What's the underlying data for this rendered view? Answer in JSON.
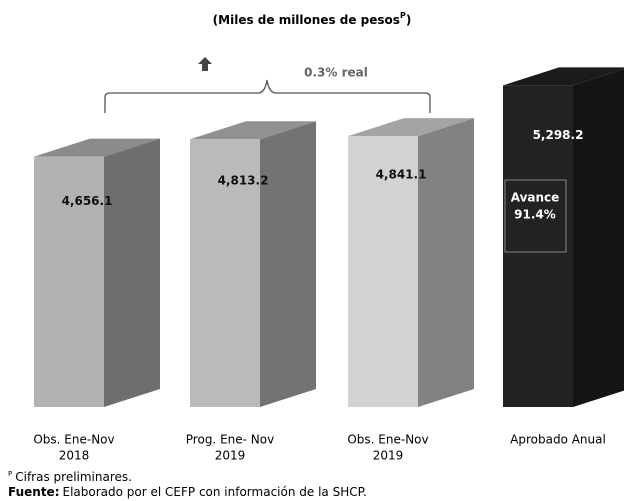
{
  "chart_data": {
    "type": "bar3d",
    "title": [
      "(Miles de millones de pesos",
      "P",
      ")"
    ],
    "categories": [
      [
        "Obs. Ene-Nov",
        "2018"
      ],
      [
        "Prog. Ene- Nov",
        "2019"
      ],
      [
        "Obs. Ene-Nov",
        "2019"
      ],
      [
        "Aprobado Anual"
      ]
    ],
    "values": [
      4656.1,
      4813.2,
      4841.1,
      5298.2
    ],
    "value_labels": [
      "4,656.1",
      "4,813.2",
      "4,841.1",
      "5,298.2"
    ],
    "colors": [
      "#b2b2b2",
      "#bababa",
      "#d2d2d2",
      "#222222"
    ],
    "ylim": [
      2400,
      5500
    ],
    "annotations": {
      "growth": "0.3% real",
      "avance": [
        "Avance",
        "91.4%"
      ]
    },
    "footnotes": {
      "note_mark": "P",
      "note": "Cifras preliminares.",
      "source_label": "Fuente:",
      "source": "Elaborado por el CEFP con información de la SHCP."
    }
  }
}
